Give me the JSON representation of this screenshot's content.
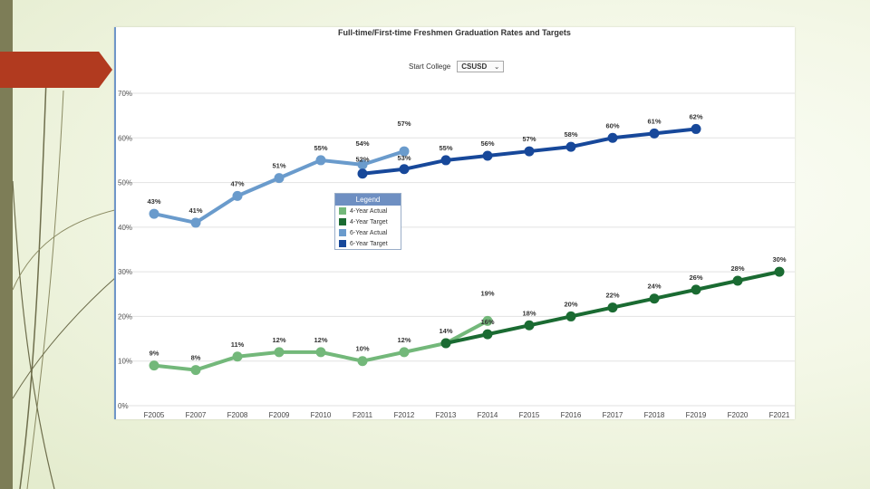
{
  "slide": {
    "colors": {
      "tab": "#b13a1f",
      "sidebar": "#7d7d57",
      "panel_border": "#6f96c8"
    }
  },
  "header": {
    "title": "Full-time/First-time Freshmen Graduation Rates and Targets",
    "filter_label": "Start College",
    "filter_value": "CSUSD"
  },
  "legend": {
    "title": "Legend",
    "items": [
      {
        "label": "4-Year Actual",
        "color": "#73b87a"
      },
      {
        "label": "4-Year Target",
        "color": "#1a6b32"
      },
      {
        "label": "6-Year Actual",
        "color": "#6a9bcc"
      },
      {
        "label": "6-Year Target",
        "color": "#17489a"
      }
    ]
  },
  "chart_data": {
    "type": "line",
    "title": "Full-time/First-time Freshmen Graduation Rates and Targets",
    "xlabel": "",
    "ylabel": "",
    "ylim": [
      0,
      70
    ],
    "yticks": [
      "0%",
      "10%",
      "20%",
      "30%",
      "40%",
      "50%",
      "60%",
      "70%"
    ],
    "categories": [
      "F2005",
      "F2007",
      "F2008",
      "F2009",
      "F2010",
      "F2011",
      "F2012",
      "F2013",
      "F2014",
      "F2015",
      "F2016",
      "F2017",
      "F2018",
      "F2019",
      "F2020",
      "F2021"
    ],
    "grid": true,
    "legend_position": "center-left",
    "series": [
      {
        "name": "4-Year Actual",
        "color": "#73b87a",
        "values": [
          9,
          8,
          11,
          12,
          12,
          10,
          12,
          14,
          19,
          null,
          null,
          null,
          null,
          null,
          null,
          null
        ],
        "labels": [
          "9%",
          "8%",
          "11%",
          "12%",
          "12%",
          "10%",
          "12%",
          "14%",
          "19%",
          "",
          "",
          "",
          "",
          "",
          "",
          ""
        ]
      },
      {
        "name": "4-Year Target",
        "color": "#1a6b32",
        "values": [
          null,
          null,
          null,
          null,
          null,
          null,
          null,
          14,
          16,
          18,
          20,
          22,
          24,
          26,
          28,
          30
        ],
        "labels": [
          "",
          "",
          "",
          "",
          "",
          "",
          "",
          "",
          "16%",
          "18%",
          "20%",
          "22%",
          "24%",
          "26%",
          "28%",
          "30%"
        ]
      },
      {
        "name": "6-Year Actual",
        "color": "#6a9bcc",
        "values": [
          43,
          41,
          47,
          51,
          55,
          54,
          57,
          null,
          null,
          null,
          null,
          null,
          null,
          null,
          null,
          null
        ],
        "labels": [
          "43%",
          "41%",
          "47%",
          "51%",
          "55%",
          "54%",
          "57%",
          "",
          "",
          "",
          "",
          "",
          "",
          "",
          "",
          ""
        ]
      },
      {
        "name": "6-Year Target",
        "color": "#17489a",
        "values": [
          null,
          null,
          null,
          null,
          null,
          52,
          53,
          55,
          56,
          57,
          58,
          60,
          61,
          62,
          null,
          null
        ],
        "labels": [
          "",
          "",
          "",
          "",
          "",
          "52%",
          "53%",
          "55%",
          "56%",
          "57%",
          "58%",
          "60%",
          "61%",
          "62%",
          "",
          ""
        ]
      }
    ]
  }
}
